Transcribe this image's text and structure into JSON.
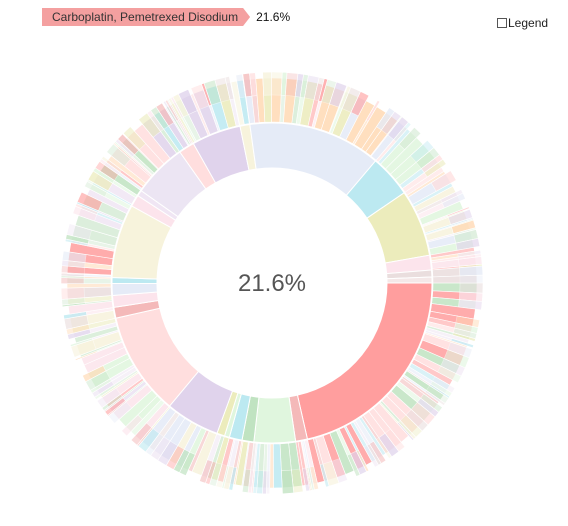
{
  "breadcrumb": {
    "items": [
      {
        "label": "Carboplatin, Pemetrexed Disodium",
        "color": "#f4a0a0"
      }
    ],
    "percentage": "21.6%"
  },
  "legend": {
    "label": "Legend",
    "checked": false
  },
  "chart_data": {
    "type": "sunburst",
    "center_label": "21.6%",
    "selected_path": [
      "Carboplatin, Pemetrexed Disodium"
    ],
    "colors": [
      "#ff9e9e",
      "#ffdede",
      "#c0e3c1",
      "#e0d3ec",
      "#bce9f1",
      "#ececbc",
      "#ffdab5",
      "#e5ebf7",
      "#e0f6de",
      "#f7f3dc",
      "#fce4ec",
      "#eadede",
      "#f4b9b9",
      "#d7ecd7",
      "#f0e6f4"
    ],
    "rings": [
      {
        "level": 1,
        "segments": [
          {
            "name": "Carboplatin, Pemetrexed Disodium",
            "value": 21.6,
            "color": "#ff9e9e"
          },
          {
            "name": "",
            "value": 1.2,
            "color": "#f4b9b9"
          },
          {
            "name": "",
            "value": 4.2,
            "color": "#e0f6de"
          },
          {
            "name": "",
            "value": 1.2,
            "color": "#c0e3c1"
          },
          {
            "name": "",
            "value": 1.3,
            "color": "#bce9f1"
          },
          {
            "name": "",
            "value": 0.5,
            "color": "#e0f6de"
          },
          {
            "name": "",
            "value": 0.8,
            "color": "#ececbc"
          },
          {
            "name": "",
            "value": 5.5,
            "color": "#e0d3ec"
          },
          {
            "name": "",
            "value": 10.5,
            "color": "#ffdede"
          },
          {
            "name": "",
            "value": 1.1,
            "color": "#f4b9b9"
          },
          {
            "name": "",
            "value": 1.2,
            "color": "#fce4ec"
          },
          {
            "name": "",
            "value": 1.2,
            "color": "#e5ebf7"
          },
          {
            "name": "",
            "value": 0.6,
            "color": "#bce9f1"
          },
          {
            "name": "",
            "value": 7.5,
            "color": "#f7f3dc"
          },
          {
            "name": "",
            "value": 1.2,
            "color": "#fce4ec"
          },
          {
            "name": "",
            "value": 0.6,
            "color": "#f0e6f4"
          },
          {
            "name": "",
            "value": 5.5,
            "color": "#ece5f3"
          },
          {
            "name": "",
            "value": 1.6,
            "color": "#ffdede"
          },
          {
            "name": "",
            "value": 5.0,
            "color": "#e0d3ec"
          },
          {
            "name": "",
            "value": 1.0,
            "color": "#f7f3dc"
          },
          {
            "name": "",
            "value": 13.5,
            "color": "#e5ebf7"
          },
          {
            "name": "",
            "value": 4.3,
            "color": "#bce9f1"
          },
          {
            "name": "",
            "value": 6.8,
            "color": "#ececbc"
          },
          {
            "name": "",
            "value": 1.5,
            "color": "#fce4ec"
          },
          {
            "name": "",
            "value": 0.7,
            "color": "#eadede"
          },
          {
            "name": "",
            "value": 0.6,
            "color": "#f4e8e8"
          }
        ]
      }
    ]
  }
}
